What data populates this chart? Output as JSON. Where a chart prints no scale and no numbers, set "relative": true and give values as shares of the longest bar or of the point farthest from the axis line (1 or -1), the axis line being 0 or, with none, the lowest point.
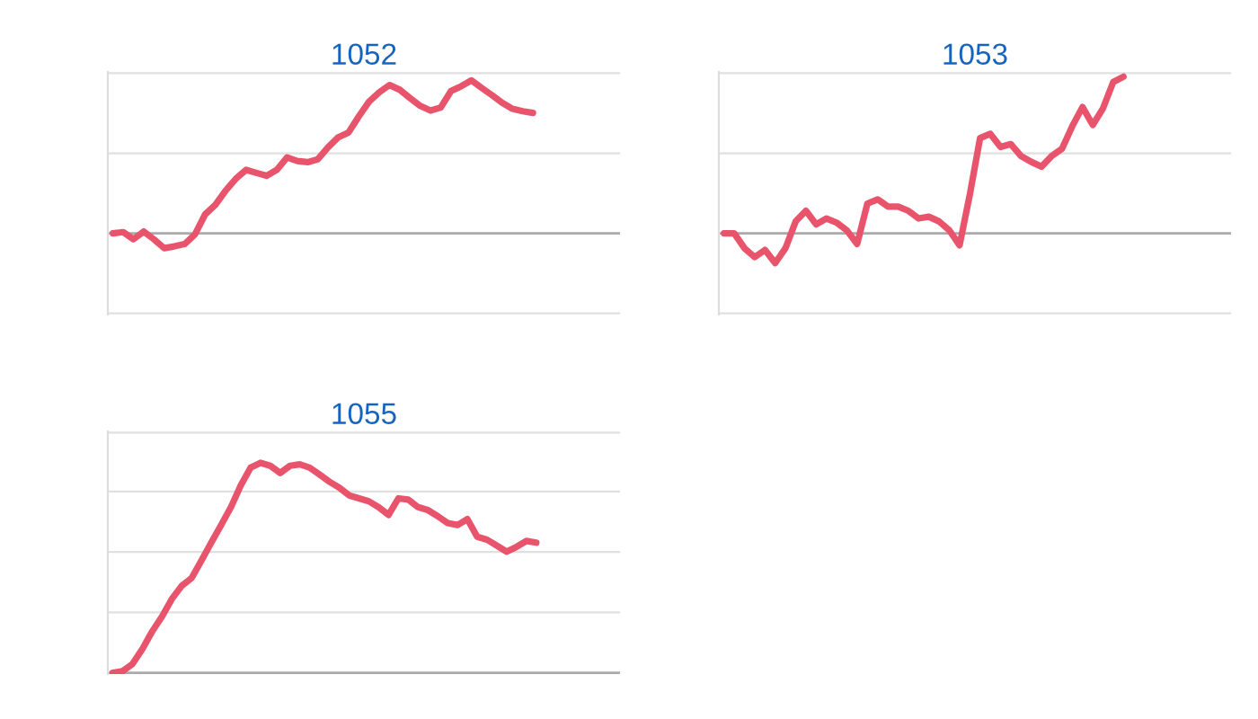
{
  "chart_data": [
    {
      "type": "line",
      "title": "1052",
      "relative": true,
      "ref_lines": [
        {
          "axis": "y",
          "value": 1.047,
          "color": "#e0e0e0"
        },
        {
          "axis": "y",
          "value": 0.523,
          "color": "#e0e0e0"
        },
        {
          "axis": "y",
          "value": -0.523,
          "color": "#e0e0e0"
        }
      ],
      "categories": [
        null,
        null,
        null,
        null,
        null,
        null,
        null,
        null,
        null,
        null,
        null,
        null,
        null,
        null,
        null,
        null,
        null,
        null,
        null,
        null,
        null,
        null,
        null,
        null,
        null,
        null,
        null,
        null,
        null,
        null,
        null,
        null,
        null,
        null,
        null,
        null,
        null,
        null,
        null,
        null,
        null,
        null,
        null,
        null,
        null,
        null,
        null,
        null,
        null,
        null
      ],
      "series": [
        {
          "color": "#e9546d",
          "values": [
            0,
            0.008,
            -0.039,
            0.012,
            -0.039,
            -0.097,
            -0.085,
            -0.07,
            -0.008,
            0.124,
            0.186,
            0.279,
            0.357,
            0.415,
            0.395,
            0.376,
            0.415,
            0.496,
            0.473,
            0.465,
            0.484,
            0.562,
            0.628,
            0.659,
            0.764,
            0.86,
            0.922,
            0.969,
            0.938,
            0.884,
            0.833,
            0.802,
            0.822,
            0.93,
            0.961,
            1.0,
            0.95,
            0.903,
            0.853,
            0.814,
            0.798,
            0.787,
            null,
            null,
            null,
            null,
            null,
            null,
            null,
            null
          ]
        }
      ]
    },
    {
      "type": "line",
      "title": "1053",
      "relative": true,
      "ref_lines": [
        {
          "axis": "y",
          "value": 1.023,
          "color": "#e0e0e0"
        },
        {
          "axis": "y",
          "value": 0.511,
          "color": "#e0e0e0"
        },
        {
          "axis": "y",
          "value": -0.511,
          "color": "#e0e0e0"
        }
      ],
      "categories": [
        null,
        null,
        null,
        null,
        null,
        null,
        null,
        null,
        null,
        null,
        null,
        null,
        null,
        null,
        null,
        null,
        null,
        null,
        null,
        null,
        null,
        null,
        null,
        null,
        null,
        null,
        null,
        null,
        null,
        null,
        null,
        null,
        null,
        null,
        null,
        null,
        null,
        null,
        null,
        null,
        null,
        null,
        null,
        null,
        null,
        null,
        null,
        null,
        null,
        null
      ],
      "series": [
        {
          "color": "#e9546d",
          "values": [
            0,
            0,
            -0.095,
            -0.152,
            -0.106,
            -0.19,
            -0.095,
            0.076,
            0.144,
            0.057,
            0.095,
            0.068,
            0.019,
            -0.068,
            0.19,
            0.217,
            0.171,
            0.171,
            0.144,
            0.095,
            0.106,
            0.076,
            0.019,
            -0.076,
            0.247,
            0.608,
            0.635,
            0.551,
            0.57,
            0.494,
            0.456,
            0.426,
            0.494,
            0.54,
            0.684,
            0.806,
            0.692,
            0.798,
            0.966,
            1.0,
            null,
            null,
            null,
            null,
            null,
            null,
            null,
            null,
            null,
            null
          ]
        }
      ]
    },
    {
      "type": "line",
      "title": "1055",
      "relative": true,
      "ref_lines": [
        {
          "axis": "y",
          "value": 1.144,
          "color": "#e0e0e0"
        },
        {
          "axis": "y",
          "value": 0.864,
          "color": "#e0e0e0"
        },
        {
          "axis": "y",
          "value": 0.576,
          "color": "#e0e0e0"
        },
        {
          "axis": "y",
          "value": 0.288,
          "color": "#e0e0e0"
        }
      ],
      "categories": [
        null,
        null,
        null,
        null,
        null,
        null,
        null,
        null,
        null,
        null,
        null,
        null,
        null,
        null,
        null,
        null,
        null,
        null,
        null,
        null,
        null,
        null,
        null,
        null,
        null,
        null,
        null,
        null,
        null,
        null,
        null,
        null,
        null,
        null,
        null,
        null,
        null,
        null,
        null,
        null,
        null,
        null,
        null,
        null,
        null,
        null,
        null,
        null,
        null,
        null,
        null,
        null
      ],
      "series": [
        {
          "color": "#e9546d",
          "values": [
            0,
            0.008,
            0.042,
            0.113,
            0.197,
            0.268,
            0.352,
            0.414,
            0.451,
            0.535,
            0.62,
            0.704,
            0.789,
            0.893,
            0.977,
            1.0,
            0.986,
            0.952,
            0.986,
            0.993,
            0.977,
            0.944,
            0.91,
            0.882,
            0.845,
            0.831,
            0.817,
            0.789,
            0.752,
            0.831,
            0.825,
            0.789,
            0.775,
            0.746,
            0.713,
            0.704,
            0.732,
            0.648,
            0.634,
            0.606,
            0.577,
            0.6,
            0.628,
            0.62,
            null,
            null,
            null,
            null,
            null,
            null,
            null,
            null
          ]
        }
      ]
    }
  ]
}
